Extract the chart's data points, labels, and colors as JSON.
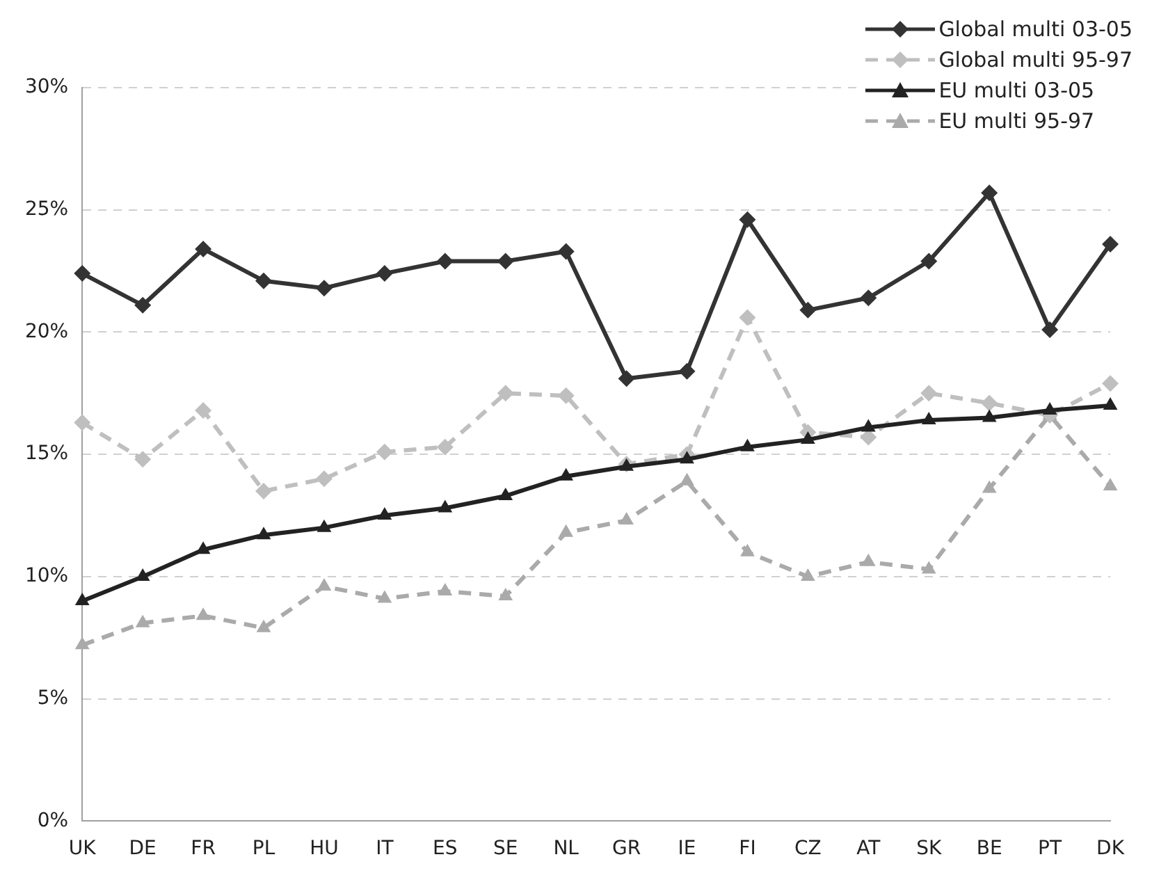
{
  "chart_data": {
    "type": "line",
    "categories": [
      "UK",
      "DE",
      "FR",
      "PL",
      "HU",
      "IT",
      "ES",
      "SE",
      "NL",
      "GR",
      "IE",
      "FI",
      "CZ",
      "AT",
      "SK",
      "BE",
      "PT",
      "DK"
    ],
    "series": [
      {
        "name": "Global multi 03-05",
        "color": "#333333",
        "marker": "diamond",
        "line_style": "solid",
        "values": [
          22.4,
          21.1,
          23.4,
          22.1,
          21.8,
          22.4,
          22.9,
          22.9,
          23.3,
          18.1,
          18.4,
          24.6,
          20.9,
          21.4,
          22.9,
          25.7,
          20.1,
          23.6
        ]
      },
      {
        "name": "Global multi 95-97",
        "color": "#bfbfbf",
        "marker": "diamond",
        "line_style": "dashed",
        "values": [
          16.3,
          14.8,
          16.8,
          13.5,
          14.0,
          15.1,
          15.3,
          17.5,
          17.4,
          14.6,
          15.0,
          20.6,
          15.9,
          15.7,
          17.5,
          17.1,
          16.6,
          17.9
        ]
      },
      {
        "name": "EU multi 03-05",
        "color": "#222222",
        "marker": "triangle",
        "line_style": "solid",
        "values": [
          9.0,
          10.0,
          11.1,
          11.7,
          12.0,
          12.5,
          12.8,
          13.3,
          14.1,
          14.5,
          14.8,
          15.3,
          15.6,
          16.1,
          16.4,
          16.5,
          16.8,
          17.0
        ]
      },
      {
        "name": "EU multi 95-97",
        "color": "#aaaaaa",
        "marker": "triangle",
        "line_style": "dashed",
        "values": [
          7.2,
          8.1,
          8.4,
          7.9,
          9.6,
          9.1,
          9.4,
          9.2,
          11.8,
          12.3,
          13.9,
          11.0,
          10.0,
          10.6,
          10.3,
          13.6,
          16.6,
          13.7
        ]
      }
    ],
    "ylim": [
      0,
      30
    ],
    "yticks": [
      {
        "value": 0,
        "label": "0%"
      },
      {
        "value": 5,
        "label": "5%"
      },
      {
        "value": 10,
        "label": "10%"
      },
      {
        "value": 15,
        "label": "15%"
      },
      {
        "value": 20,
        "label": "20%"
      },
      {
        "value": 25,
        "label": "25%"
      },
      {
        "value": 30,
        "label": "30%"
      }
    ],
    "grid": "y",
    "legend": "top right"
  }
}
